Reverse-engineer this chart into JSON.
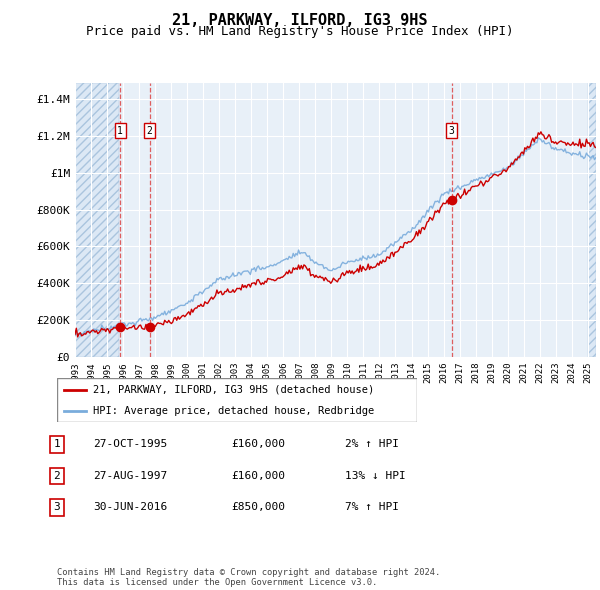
{
  "title": "21, PARKWAY, ILFORD, IG3 9HS",
  "subtitle": "Price paid vs. HM Land Registry's House Price Index (HPI)",
  "title_fontsize": 11,
  "subtitle_fontsize": 9,
  "ylabel_ticks": [
    "£0",
    "£200K",
    "£400K",
    "£600K",
    "£800K",
    "£1M",
    "£1.2M",
    "£1.4M"
  ],
  "ytick_values": [
    0,
    200000,
    400000,
    600000,
    800000,
    1000000,
    1200000,
    1400000
  ],
  "ylim": [
    0,
    1490000
  ],
  "xlim_start": 1993.0,
  "xlim_end": 2025.5,
  "hpi_color": "#7aacdc",
  "price_color": "#cc0000",
  "hatched_region_color": "#dce8f5",
  "hatched_region_end": 1995.75,
  "bg_color": "#e8f0f8",
  "grid_color": "#ffffff",
  "transactions": [
    {
      "date_num": 1995.82,
      "price": 160000,
      "label": "1"
    },
    {
      "date_num": 1997.65,
      "price": 160000,
      "label": "2"
    },
    {
      "date_num": 2016.5,
      "price": 850000,
      "label": "3"
    }
  ],
  "legend_entries": [
    {
      "label": "21, PARKWAY, ILFORD, IG3 9HS (detached house)",
      "color": "#cc0000"
    },
    {
      "label": "HPI: Average price, detached house, Redbridge",
      "color": "#7aacdc"
    }
  ],
  "table_entries": [
    {
      "num": "1",
      "date": "27-OCT-1995",
      "price": "£160,000",
      "hpi": "2% ↑ HPI"
    },
    {
      "num": "2",
      "date": "27-AUG-1997",
      "price": "£160,000",
      "hpi": "13% ↓ HPI"
    },
    {
      "num": "3",
      "date": "30-JUN-2016",
      "price": "£850,000",
      "hpi": "7% ↑ HPI"
    }
  ],
  "footer": "Contains HM Land Registry data © Crown copyright and database right 2024.\nThis data is licensed under the Open Government Licence v3.0."
}
